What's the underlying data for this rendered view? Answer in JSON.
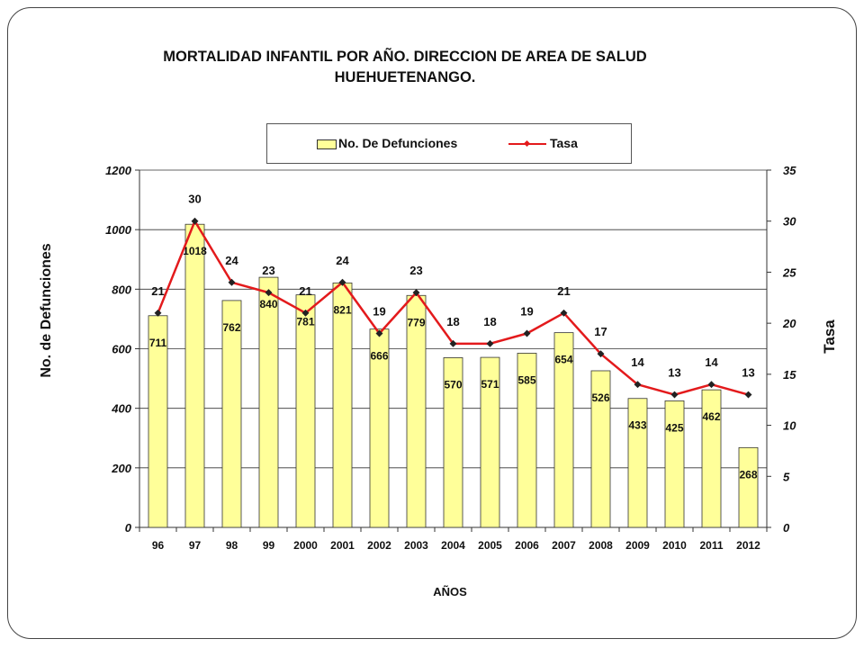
{
  "chart_data": {
    "type": "bar",
    "title": "MORTALIDAD INFANTIL POR AÑO. DIRECCION DE AREA DE SALUD",
    "subtitle": "HUEHUETENANGO.",
    "xlabel": "AÑOS",
    "ylabel": "No. de Defunciones",
    "ylabel_right": "Tasa",
    "categories": [
      "96",
      "97",
      "98",
      "99",
      "2000",
      "2001",
      "2002",
      "2003",
      "2004",
      "2005",
      "2006",
      "2007",
      "2008",
      "2009",
      "2010",
      "2011",
      "2012"
    ],
    "series": [
      {
        "name": "No. De Defunciones",
        "type": "bar",
        "axis": "left",
        "color": "#ffff99",
        "values": [
          711,
          1018,
          762,
          840,
          781,
          821,
          666,
          779,
          570,
          571,
          585,
          654,
          526,
          433,
          425,
          462,
          268
        ]
      },
      {
        "name": "Tasa",
        "type": "line",
        "axis": "right",
        "color": "#e31a1c",
        "values": [
          21,
          30,
          24,
          23,
          21,
          24,
          19,
          23,
          18,
          18,
          19,
          21,
          17,
          14,
          13,
          14,
          13
        ]
      }
    ],
    "ylim": [
      0,
      1200
    ],
    "yticks": [
      0,
      200,
      400,
      600,
      800,
      1000,
      1200
    ],
    "y2lim": [
      0,
      35
    ],
    "y2ticks": [
      0,
      5,
      10,
      15,
      20,
      25,
      30,
      35
    ],
    "grid": true,
    "legend_position": "top"
  }
}
